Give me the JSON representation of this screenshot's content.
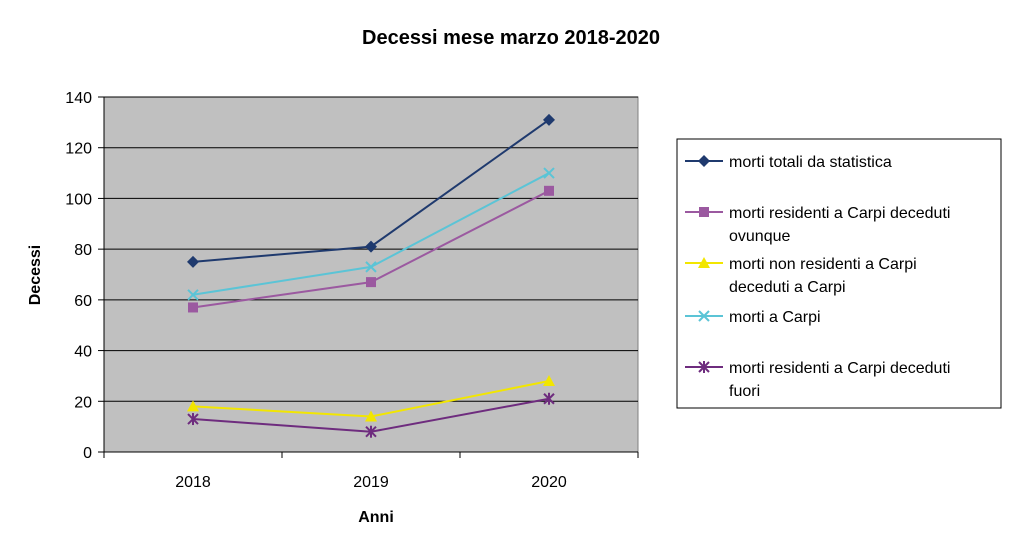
{
  "chart_data": {
    "type": "line",
    "title": "Decessi mese marzo 2018-2020",
    "xlabel": "Anni",
    "ylabel": "Decessi",
    "categories": [
      "2018",
      "2019",
      "2020"
    ],
    "ylim": [
      0,
      140
    ],
    "y_ticks": [
      0,
      20,
      40,
      60,
      80,
      100,
      120,
      140
    ],
    "grid": true,
    "legend_position": "right",
    "plot_background": "#c0c0c0",
    "series": [
      {
        "name": "morti totali da statistica",
        "legend_lines": [
          "morti totali da statistica"
        ],
        "values": [
          75,
          81,
          131
        ],
        "color": "#1f3a6e",
        "marker": "diamond"
      },
      {
        "name": "morti residenti a Carpi deceduti ovunque",
        "legend_lines": [
          "morti residenti a Carpi deceduti",
          "ovunque"
        ],
        "values": [
          57,
          67,
          103
        ],
        "color": "#9b59a0",
        "marker": "square"
      },
      {
        "name": "morti non residenti a Carpi deceduti a Carpi",
        "legend_lines": [
          "morti non residenti a Carpi",
          "deceduti a Carpi"
        ],
        "values": [
          18,
          14,
          28
        ],
        "color": "#f2e600",
        "marker": "triangle"
      },
      {
        "name": "morti a Carpi",
        "legend_lines": [
          "morti a Carpi"
        ],
        "values": [
          62,
          73,
          110
        ],
        "color": "#5bc4d6",
        "marker": "x"
      },
      {
        "name": "morti residenti a Carpi deceduti fuori",
        "legend_lines": [
          "morti residenti a Carpi deceduti",
          "fuori"
        ],
        "values": [
          13,
          8,
          21
        ],
        "color": "#6e2c7e",
        "marker": "star"
      }
    ]
  }
}
